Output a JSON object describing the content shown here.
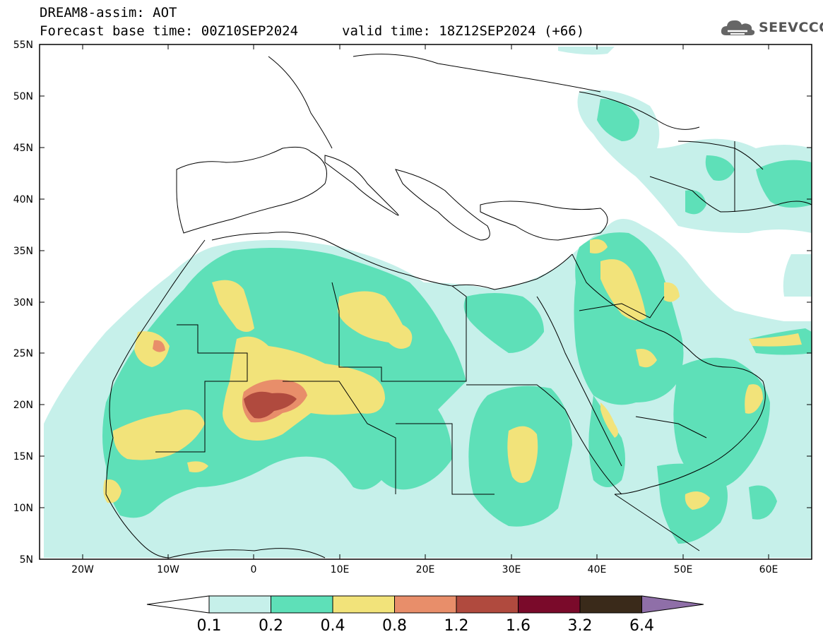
{
  "header": {
    "title": "DREAM8-assim: AOT",
    "base_time": "Forecast base time: 00Z10SEP2024",
    "valid_time": "valid time: 18Z12SEP2024 (+66)",
    "logo_text": "SEEVCCC"
  },
  "map": {
    "lat_labels": [
      "55N",
      "50N",
      "45N",
      "40N",
      "35N",
      "30N",
      "25N",
      "20N",
      "15N",
      "10N",
      "5N"
    ],
    "lon_labels": [
      "20W",
      "10W",
      "0",
      "10E",
      "20E",
      "30E",
      "40E",
      "50E",
      "60E"
    ],
    "lon_range": [
      -25,
      65
    ],
    "lat_range": [
      5,
      55
    ]
  },
  "colorbar": {
    "levels": [
      "0.1",
      "0.2",
      "0.4",
      "0.8",
      "1.2",
      "1.6",
      "3.2",
      "6.4"
    ],
    "colors": [
      "#c6f0ea",
      "#5ee0b8",
      "#f2e37a",
      "#e88e6a",
      "#b04a3e",
      "#7a0a2a",
      "#3a2a1a",
      "#8f6fa8"
    ],
    "under_color": "#ffffff",
    "over_color": "#8f6fa8"
  }
}
